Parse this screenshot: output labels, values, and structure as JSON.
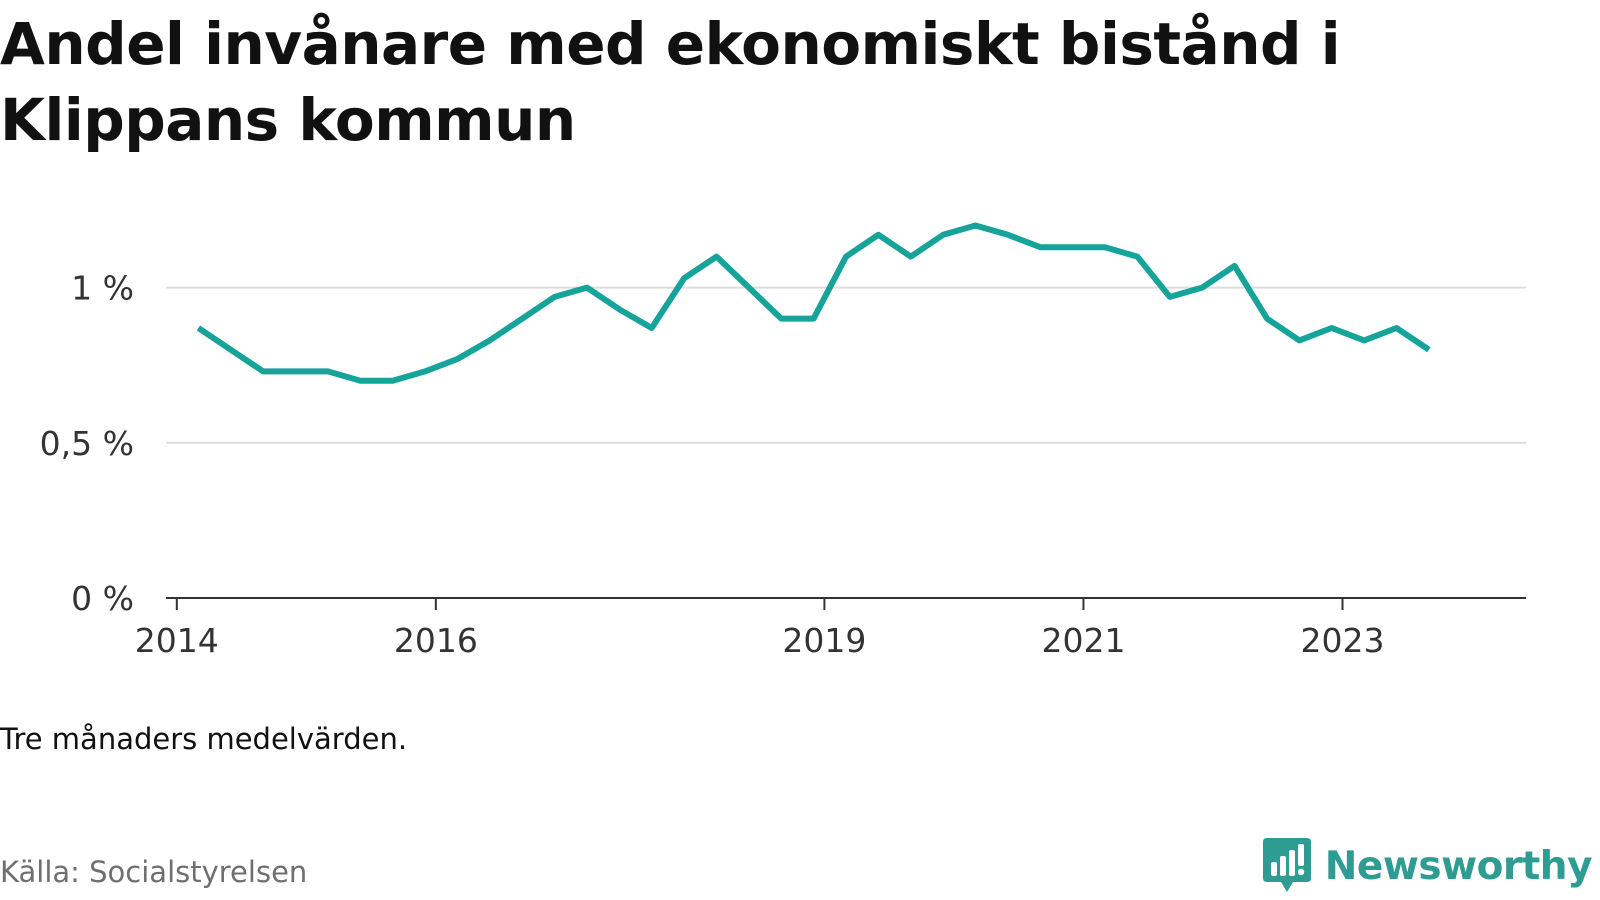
{
  "title": "Andel invånare med ekonomiskt bistånd i Klippans kommun",
  "note": "Tre månaders medelvärden.",
  "source": "Källa: Socialstyrelsen",
  "brand": {
    "name": "Newsworthy",
    "icon": "newsworthy-logo-icon"
  },
  "colors": {
    "line": "#16a49a",
    "grid": "#dddddd",
    "axis": "#333333",
    "brand": "#2f9c93"
  },
  "chart_data": {
    "type": "line",
    "title": "Andel invånare med ekonomiskt bistånd i Klippans kommun",
    "xlabel": "",
    "ylabel": "",
    "ylim": [
      0,
      1.25
    ],
    "grid": true,
    "legend": "none",
    "y_ticks": [
      {
        "value": 0,
        "label": "0 %"
      },
      {
        "value": 0.5,
        "label": "0,5 %"
      },
      {
        "value": 1,
        "label": "1 %"
      }
    ],
    "x_ticks": [
      {
        "value": "2014-01",
        "label": "2014"
      },
      {
        "value": "2016-01",
        "label": "2016"
      },
      {
        "value": "2019-01",
        "label": "2019"
      },
      {
        "value": "2021-01",
        "label": "2021"
      },
      {
        "value": "2023-01",
        "label": "2023"
      }
    ],
    "x_range": [
      "2013-12",
      "2024-06"
    ],
    "series": [
      {
        "points": [
          {
            "x": "2014-03",
            "y": 0.87
          },
          {
            "x": "2014-06",
            "y": 0.8
          },
          {
            "x": "2014-09",
            "y": 0.73
          },
          {
            "x": "2014-12",
            "y": 0.73
          },
          {
            "x": "2015-03",
            "y": 0.73
          },
          {
            "x": "2015-06",
            "y": 0.7
          },
          {
            "x": "2015-09",
            "y": 0.7
          },
          {
            "x": "2015-12",
            "y": 0.73
          },
          {
            "x": "2016-03",
            "y": 0.77
          },
          {
            "x": "2016-06",
            "y": 0.83
          },
          {
            "x": "2016-09",
            "y": 0.9
          },
          {
            "x": "2016-12",
            "y": 0.97
          },
          {
            "x": "2017-03",
            "y": 1.0
          },
          {
            "x": "2017-06",
            "y": 0.93
          },
          {
            "x": "2017-09",
            "y": 0.87
          },
          {
            "x": "2017-12",
            "y": 1.03
          },
          {
            "x": "2018-03",
            "y": 1.1
          },
          {
            "x": "2018-06",
            "y": 1.0
          },
          {
            "x": "2018-09",
            "y": 0.9
          },
          {
            "x": "2018-12",
            "y": 0.9
          },
          {
            "x": "2019-03",
            "y": 1.1
          },
          {
            "x": "2019-06",
            "y": 1.17
          },
          {
            "x": "2019-09",
            "y": 1.1
          },
          {
            "x": "2019-12",
            "y": 1.17
          },
          {
            "x": "2020-03",
            "y": 1.2
          },
          {
            "x": "2020-06",
            "y": 1.17
          },
          {
            "x": "2020-09",
            "y": 1.13
          },
          {
            "x": "2020-12",
            "y": 1.13
          },
          {
            "x": "2021-03",
            "y": 1.13
          },
          {
            "x": "2021-06",
            "y": 1.1
          },
          {
            "x": "2021-09",
            "y": 0.97
          },
          {
            "x": "2021-12",
            "y": 1.0
          },
          {
            "x": "2022-03",
            "y": 1.07
          },
          {
            "x": "2022-06",
            "y": 0.9
          },
          {
            "x": "2022-09",
            "y": 0.83
          },
          {
            "x": "2022-12",
            "y": 0.87
          },
          {
            "x": "2023-03",
            "y": 0.83
          },
          {
            "x": "2023-06",
            "y": 0.87
          },
          {
            "x": "2023-09",
            "y": 0.8
          }
        ]
      }
    ]
  }
}
